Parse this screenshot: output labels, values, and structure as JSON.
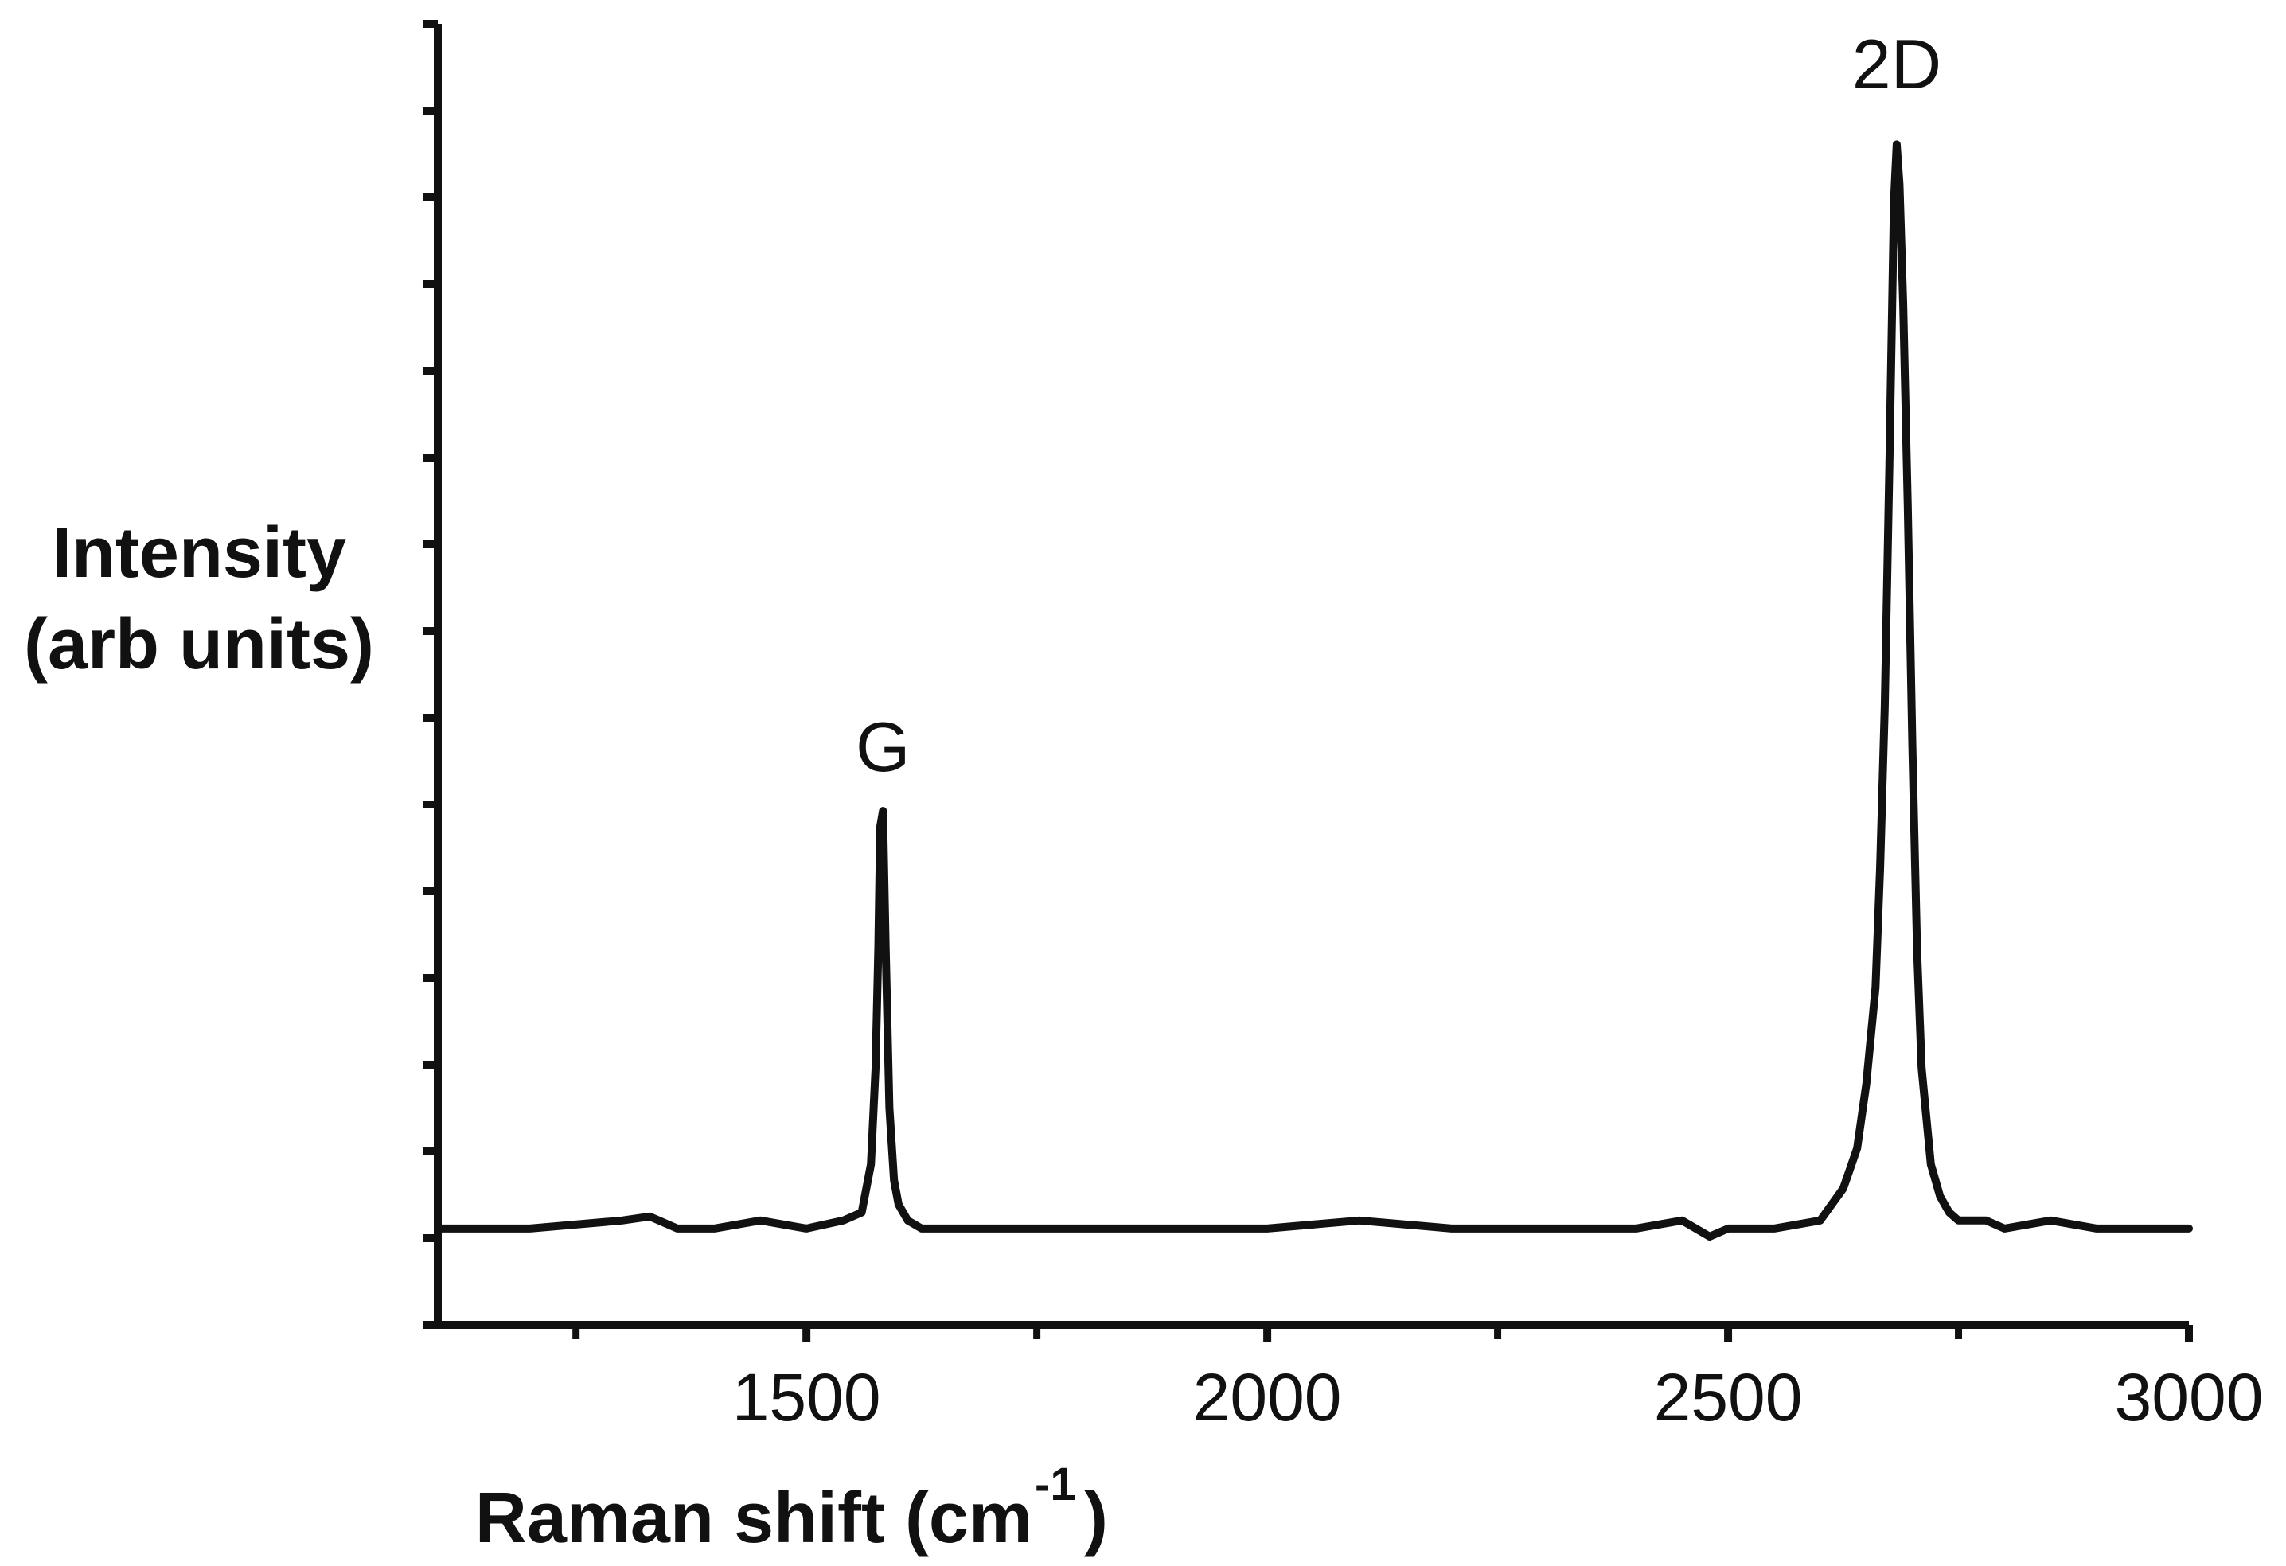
{
  "chart_data": {
    "type": "line",
    "xlabel_main": "Raman shift (cm",
    "xlabel_sup": "-1",
    "xlabel_close": ")",
    "ylabel_line1": "Intensity",
    "ylabel_line2": "(arb units)",
    "xlim": [
      1100,
      3000
    ],
    "ylim": [
      -0.12,
      1.5
    ],
    "x_ticks": [
      1500,
      2000,
      2500,
      3000
    ],
    "x_minor_ticks": [
      1250,
      1750,
      2250,
      2750
    ],
    "y_tick_count": 16,
    "grid": false,
    "legend": "none",
    "line_color": "#111111",
    "annotations": [
      {
        "text": "G",
        "x": 1583,
        "y": 0.55
      },
      {
        "text": "2D",
        "x": 2683,
        "y": 1.4
      }
    ],
    "series": [
      {
        "x": [
          1100,
          1200,
          1300,
          1330,
          1360,
          1400,
          1450,
          1500,
          1540,
          1560,
          1570,
          1575,
          1578,
          1580,
          1583,
          1586,
          1590,
          1595,
          1600,
          1610,
          1625,
          1650,
          1700,
          1800,
          1900,
          2000,
          2100,
          2200,
          2300,
          2400,
          2450,
          2480,
          2500,
          2550,
          2600,
          2625,
          2640,
          2650,
          2660,
          2665,
          2670,
          2675,
          2680,
          2683,
          2686,
          2690,
          2695,
          2700,
          2705,
          2710,
          2720,
          2730,
          2740,
          2750,
          2780,
          2800,
          2850,
          2900,
          3000
        ],
        "y": [
          0.0,
          0.0,
          0.01,
          0.015,
          0.0,
          0.0,
          0.01,
          0.0,
          0.01,
          0.02,
          0.08,
          0.2,
          0.35,
          0.5,
          0.52,
          0.35,
          0.15,
          0.06,
          0.03,
          0.01,
          0.0,
          0.0,
          0.0,
          0.0,
          0.0,
          0.0,
          0.01,
          0.0,
          0.0,
          0.0,
          0.01,
          -0.01,
          0.0,
          0.0,
          0.01,
          0.05,
          0.1,
          0.18,
          0.3,
          0.45,
          0.65,
          0.95,
          1.28,
          1.35,
          1.3,
          1.15,
          0.9,
          0.6,
          0.35,
          0.2,
          0.08,
          0.04,
          0.02,
          0.01,
          0.01,
          0.0,
          0.01,
          0.0,
          0.0
        ]
      }
    ]
  }
}
